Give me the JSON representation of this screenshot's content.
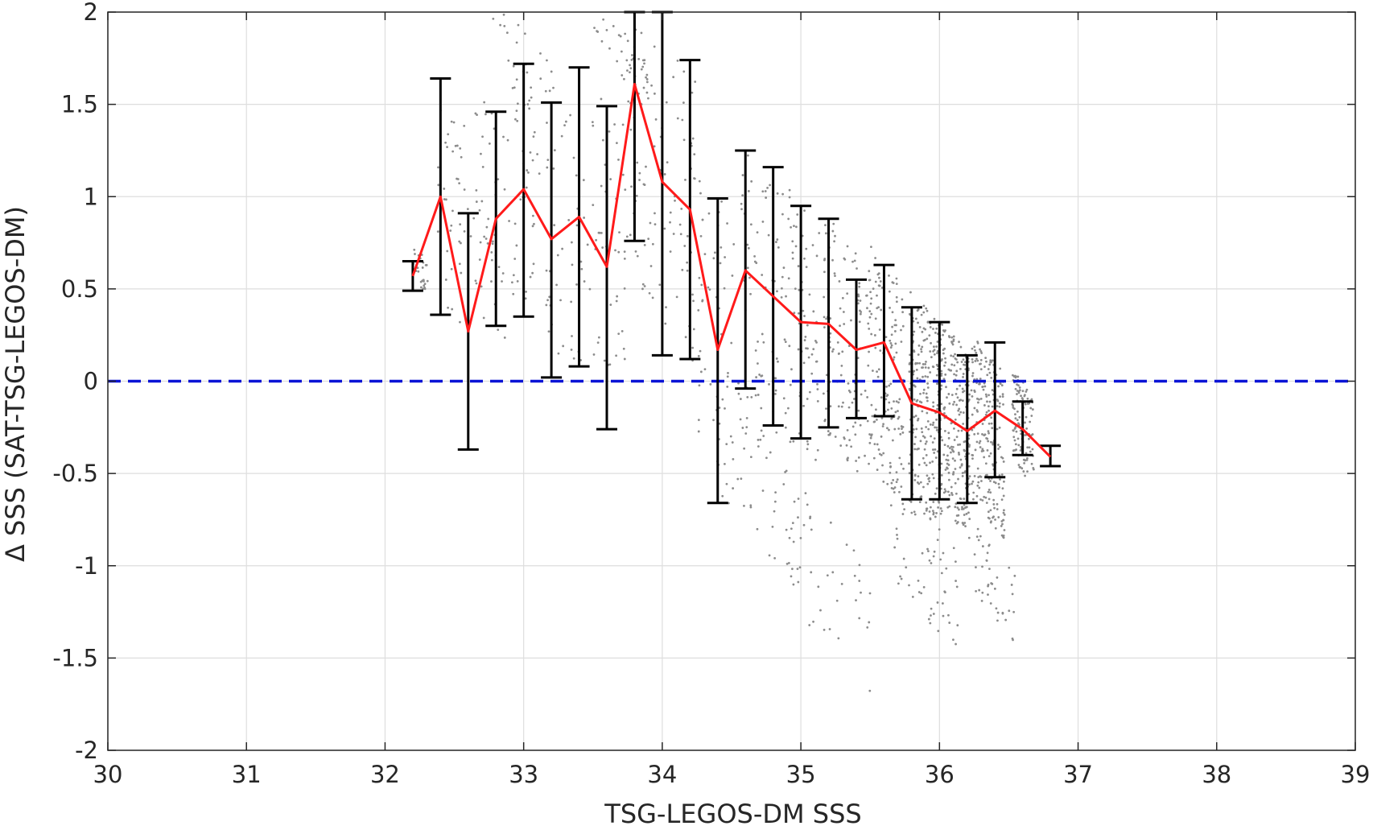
{
  "chart_data": {
    "type": "scatter",
    "xlabel": "TSG-LEGOS-DM SSS",
    "ylabel": "Δ SSS (SAT-TSG-LEGOS-DM)",
    "xlim": [
      30,
      39
    ],
    "ylim": [
      -2,
      2
    ],
    "xticks": [
      30,
      31,
      32,
      33,
      34,
      35,
      36,
      37,
      38,
      39
    ],
    "yticks": [
      2,
      1.5,
      1,
      0.5,
      0,
      -0.5,
      -1,
      -1.5,
      -2
    ],
    "xtick_labels": [
      "30",
      "31",
      "32",
      "33",
      "34",
      "35",
      "36",
      "37",
      "38",
      "39"
    ],
    "ytick_labels": [
      "2",
      "1.5",
      "1",
      "0.5",
      "0",
      "-0.5",
      "-1",
      "-1.5",
      "-2"
    ],
    "grid": true,
    "reference_line": {
      "y": 0,
      "style": "dashed",
      "color": "#0a14d6"
    },
    "colors": {
      "mean_line": "#ff1a1a",
      "error_bars": "#000000",
      "scatter": "#8c8c8c",
      "grid": "#dedede"
    },
    "series": [
      {
        "kind": "line_with_errorbars",
        "x": [
          32.2,
          32.4,
          32.6,
          32.8,
          33.0,
          33.2,
          33.4,
          33.6,
          33.8,
          34.0,
          34.2,
          34.4,
          34.6,
          34.8,
          35.0,
          35.2,
          35.4,
          35.6,
          35.8,
          36.0,
          36.2,
          36.4,
          36.6,
          36.8
        ],
        "y": [
          0.57,
          1.0,
          0.27,
          0.88,
          1.04,
          0.77,
          0.89,
          0.62,
          1.61,
          1.08,
          0.93,
          0.17,
          0.6,
          0.46,
          0.32,
          0.31,
          0.17,
          0.21,
          -0.12,
          -0.17,
          -0.27,
          -0.16,
          -0.26,
          -0.41
        ],
        "lower": [
          0.49,
          0.36,
          -0.37,
          0.3,
          0.35,
          0.02,
          0.08,
          -0.26,
          0.76,
          0.14,
          0.12,
          -0.66,
          -0.04,
          -0.24,
          -0.31,
          -0.25,
          -0.2,
          -0.19,
          -0.64,
          -0.64,
          -0.66,
          -0.52,
          -0.4,
          -0.46
        ],
        "upper": [
          0.65,
          1.64,
          0.91,
          1.46,
          1.72,
          1.51,
          1.7,
          1.49,
          2.0,
          2.0,
          1.74,
          0.99,
          1.25,
          1.16,
          0.95,
          0.88,
          0.55,
          0.63,
          0.4,
          0.32,
          0.14,
          0.21,
          -0.11,
          -0.35
        ]
      },
      {
        "kind": "scatter_clusters",
        "clusters": [
          [
            32.25,
            0.6,
            0.06,
            0.1,
            25
          ],
          [
            32.5,
            0.9,
            0.12,
            0.55,
            40
          ],
          [
            32.75,
            0.9,
            0.12,
            0.6,
            45
          ],
          [
            33.0,
            1.0,
            0.12,
            0.65,
            45
          ],
          [
            33.3,
            0.8,
            0.14,
            0.7,
            45
          ],
          [
            33.6,
            0.8,
            0.14,
            0.75,
            45
          ],
          [
            33.85,
            1.2,
            0.12,
            0.7,
            50
          ],
          [
            34.1,
            1.0,
            0.14,
            0.8,
            50
          ],
          [
            34.4,
            0.3,
            0.14,
            0.8,
            55
          ],
          [
            34.7,
            0.4,
            0.14,
            0.8,
            70
          ],
          [
            35.0,
            0.3,
            0.14,
            0.7,
            80
          ],
          [
            35.3,
            0.2,
            0.14,
            0.6,
            110
          ],
          [
            35.6,
            0.05,
            0.14,
            0.6,
            160
          ],
          [
            35.9,
            -0.15,
            0.12,
            0.55,
            240
          ],
          [
            36.1,
            -0.25,
            0.12,
            0.5,
            260
          ],
          [
            36.35,
            -0.3,
            0.12,
            0.45,
            220
          ],
          [
            36.6,
            -0.25,
            0.08,
            0.25,
            110
          ],
          [
            35.9,
            -1.0,
            0.25,
            0.3,
            60
          ],
          [
            35.2,
            -1.1,
            0.3,
            0.35,
            40
          ],
          [
            34.7,
            -0.5,
            0.3,
            0.4,
            40
          ],
          [
            33.7,
            1.8,
            0.2,
            0.15,
            30
          ],
          [
            33.0,
            1.75,
            0.25,
            0.15,
            20
          ],
          [
            36.4,
            -1.1,
            0.15,
            0.2,
            40
          ]
        ]
      }
    ]
  }
}
